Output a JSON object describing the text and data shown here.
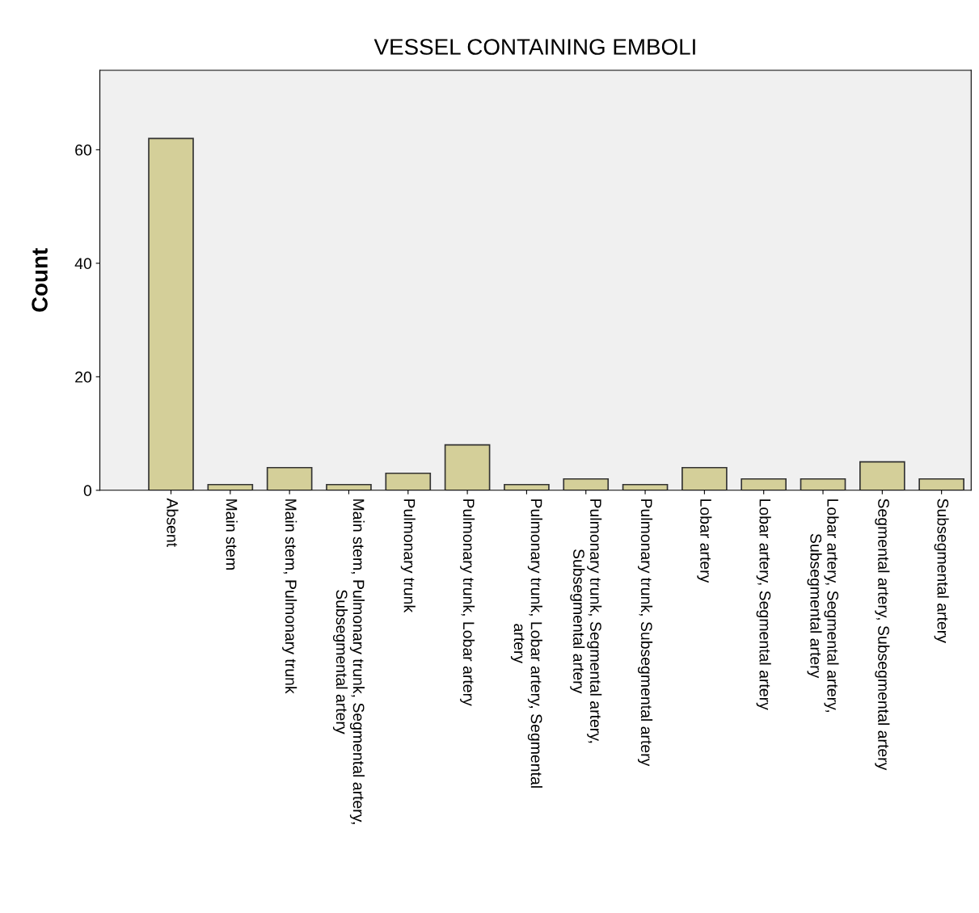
{
  "chart_data": {
    "type": "bar",
    "title": "VESSEL CONTAINING EMBOLI",
    "ylabel": "Count",
    "categories": [
      "Absent",
      "Main stem",
      "Main stem, Pulmonary trunk",
      "Main stem, Pulmonary trunk, Segmental artery,\nSubsegmental artery",
      "Pulmonary trunk",
      "Pulmonary trunk, Lobar artery",
      "Pulmonary trunk, Lobar artery, Segmental\nartery",
      "Pulmonary trunk, Segmental artery,\nSubsegmental artery",
      "Pulmonary trunk, Subsegmental artery",
      "Lobar artery",
      "Lobar artery, Segmental artery",
      "Lobar artery, Segmental artery,\nSubsegmental artery",
      "Segmental artery, Subsegmental artery",
      "Subsegmental artery"
    ],
    "values": [
      62,
      1,
      4,
      1,
      3,
      8,
      1,
      2,
      1,
      4,
      2,
      2,
      5,
      2
    ],
    "color": "#d4cf99",
    "ylim": [
      0,
      74
    ],
    "yticks": [
      0,
      20,
      40,
      60
    ],
    "grid": false,
    "legend": false
  }
}
